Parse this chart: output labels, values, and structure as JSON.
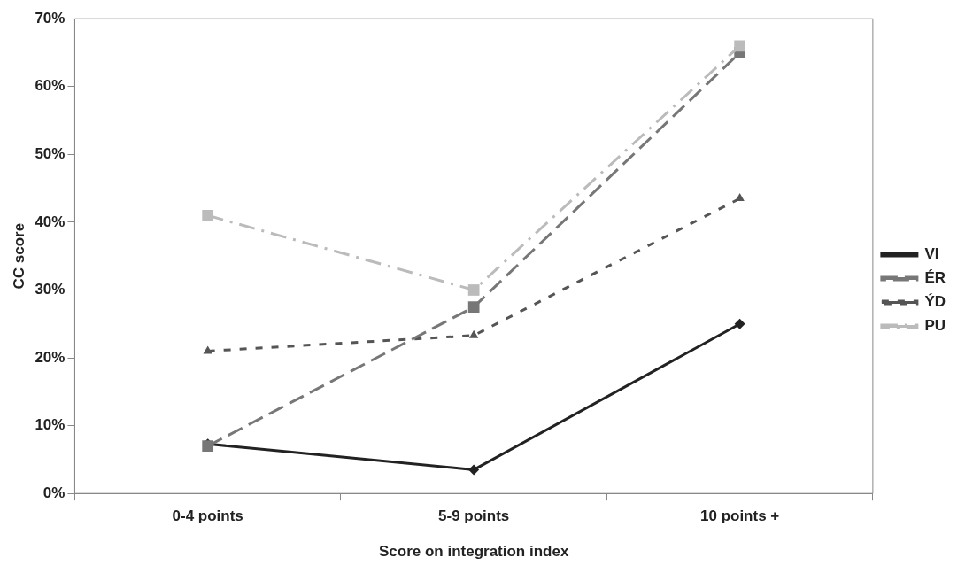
{
  "chart_data": {
    "type": "line",
    "xlabel": "Score on integration index",
    "ylabel": "CC score",
    "categories": [
      "0-4 points",
      "5-9 points",
      "10 points +"
    ],
    "series": [
      {
        "name": "VI",
        "color": "#222222",
        "values": [
          7.3,
          3.5,
          25
        ],
        "marker": "diamond",
        "line_style": "solid"
      },
      {
        "name": "ÉR",
        "color": "#777777",
        "values": [
          7,
          27.5,
          65
        ],
        "marker": "square",
        "line_style": "dashed"
      },
      {
        "name": "ÝD",
        "color": "#555555",
        "values": [
          21,
          23.3,
          43.5
        ],
        "marker": "triangle",
        "line_style": "dashed"
      },
      {
        "name": "PU",
        "color": "#bbbbbb",
        "values": [
          41,
          30,
          66
        ],
        "marker": "square",
        "line_style": "dashdot"
      }
    ],
    "ylim": [
      0,
      70
    ],
    "yticks": [
      {
        "value": 0,
        "label": "0%"
      },
      {
        "value": 10,
        "label": "10%"
      },
      {
        "value": 20,
        "label": "20%"
      },
      {
        "value": 30,
        "label": "30%"
      },
      {
        "value": 40,
        "label": "40%"
      },
      {
        "value": 50,
        "label": "50%"
      },
      {
        "value": 60,
        "label": "60%"
      },
      {
        "value": 70,
        "label": "70%"
      }
    ],
    "grid": false,
    "legend": "right"
  }
}
